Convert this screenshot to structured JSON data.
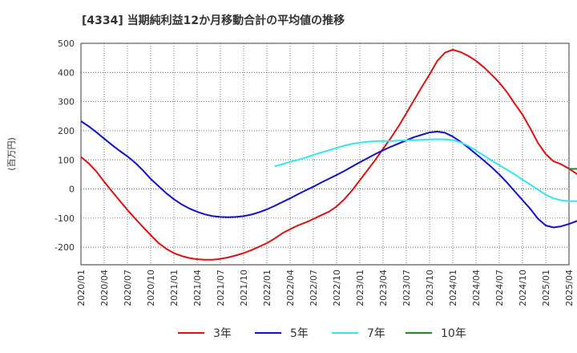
{
  "chart_data": {
    "type": "line",
    "title": "[4334]  当期純利益12か月移動合計の平均値の推移",
    "ylabel": "(百万円)",
    "xlabel": "",
    "ylim": [
      -260,
      500
    ],
    "y_ticks": [
      500,
      400,
      300,
      200,
      100,
      0,
      -100,
      -200
    ],
    "x_tick_labels": [
      "2020/01",
      "2020/04",
      "2020/07",
      "2020/10",
      "2021/01",
      "2021/04",
      "2021/07",
      "2021/10",
      "2022/01",
      "2022/04",
      "2022/07",
      "2022/10",
      "2023/01",
      "2023/04",
      "2023/07",
      "2023/10",
      "2024/01",
      "2024/04",
      "2024/07",
      "2024/10",
      "2025/01",
      "2025/04"
    ],
    "grid": true,
    "legend_position": "bottom",
    "series": [
      {
        "name": "3年",
        "color": "#dd1111",
        "start": 0,
        "values": [
          110,
          88,
          60,
          25,
          -8,
          -40,
          -72,
          -102,
          -130,
          -158,
          -185,
          -205,
          -220,
          -230,
          -237,
          -241,
          -243,
          -243,
          -240,
          -235,
          -228,
          -220,
          -210,
          -198,
          -186,
          -170,
          -152,
          -138,
          -125,
          -115,
          -103,
          -90,
          -78,
          -60,
          -35,
          -5,
          30,
          65,
          100,
          138,
          175,
          215,
          260,
          305,
          350,
          393,
          440,
          468,
          478,
          470,
          457,
          440,
          418,
          393,
          365,
          332,
          293,
          255,
          208,
          158,
          120,
          95,
          85,
          70,
          52,
          30
        ]
      },
      {
        "name": "5年",
        "color": "#1111cc",
        "start": 0,
        "values": [
          233,
          215,
          195,
          173,
          151,
          131,
          112,
          90,
          64,
          35,
          10,
          -14,
          -35,
          -53,
          -67,
          -78,
          -87,
          -93,
          -96,
          -97,
          -96,
          -93,
          -88,
          -80,
          -70,
          -58,
          -45,
          -32,
          -18,
          -5,
          8,
          22,
          35,
          48,
          62,
          77,
          92,
          106,
          120,
          133,
          145,
          156,
          167,
          178,
          186,
          194,
          197,
          193,
          180,
          162,
          142,
          120,
          98,
          75,
          50,
          22,
          -8,
          -38,
          -68,
          -102,
          -125,
          -132,
          -128,
          -120,
          -110,
          -98
        ]
      },
      {
        "name": "7年",
        "color": "#33e6ee",
        "start": 25,
        "values": [
          78,
          85,
          93,
          100,
          108,
          117,
          125,
          133,
          141,
          149,
          155,
          159,
          162,
          164,
          165,
          165,
          166,
          167,
          168,
          169,
          170,
          171,
          170,
          168,
          160,
          148,
          132,
          115,
          98,
          82,
          66,
          50,
          32,
          15,
          -2,
          -20,
          -32,
          -39,
          -42,
          -42,
          -40,
          -37
        ]
      },
      {
        "name": "10年",
        "color": "#228822",
        "start": 63,
        "values": [
          69,
          69,
          69
        ]
      }
    ]
  }
}
